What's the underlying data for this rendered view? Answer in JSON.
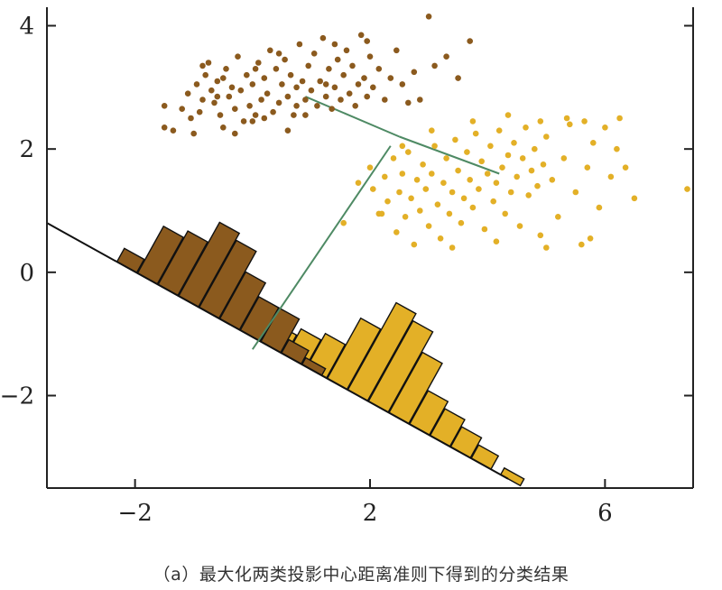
{
  "caption": "（a）最大化两类投影中心距离准则下得到的分类结果",
  "colors": {
    "class1": "#8B5A1E",
    "class2": "#E3B027",
    "line": "#111111",
    "connector": "#4E8A64",
    "axis": "#222222"
  },
  "chart_data": {
    "type": "scatter",
    "title": "",
    "xlabel": "",
    "ylabel": "",
    "xlim": [
      -3.5,
      7.5
    ],
    "ylim": [
      -3.5,
      4.3
    ],
    "xticks": [
      -2,
      2,
      6
    ],
    "xtick_labels": [
      "−2",
      "2",
      "6"
    ],
    "yticks": [
      4,
      2,
      0,
      -2
    ],
    "ytick_labels": [
      "4",
      "2",
      "0",
      "−2"
    ],
    "grid": false,
    "projection_line": {
      "x1": -3.5,
      "y1": 0.8,
      "x2": 4.35,
      "y2": -3.35
    },
    "connector_lines": [
      {
        "x1": 0.9,
        "y1": 2.85,
        "x2": 2.5,
        "y2": 2.2
      },
      {
        "x1": 2.5,
        "y1": 2.2,
        "x2": 4.2,
        "y2": 1.6
      },
      {
        "x1": 2.35,
        "y1": 2.05,
        "x2": 0.0,
        "y2": -1.25
      }
    ],
    "series": [
      {
        "color_key": "class1",
        "points": [
          [
            -1.5,
            2.7
          ],
          [
            -1.5,
            2.35
          ],
          [
            -1.35,
            2.3
          ],
          [
            -1.2,
            2.65
          ],
          [
            -1.1,
            2.9
          ],
          [
            -1.05,
            2.5
          ],
          [
            -1.0,
            2.25
          ],
          [
            -0.95,
            3.05
          ],
          [
            -0.9,
            2.6
          ],
          [
            -0.85,
            2.8
          ],
          [
            -0.8,
            3.2
          ],
          [
            -0.75,
            3.4
          ],
          [
            -0.7,
            2.95
          ],
          [
            -0.65,
            2.75
          ],
          [
            -0.6,
            3.1
          ],
          [
            -0.55,
            2.55
          ],
          [
            -0.5,
            2.35
          ],
          [
            -0.45,
            3.3
          ],
          [
            -0.4,
            2.85
          ],
          [
            -0.35,
            3.0
          ],
          [
            -0.3,
            2.65
          ],
          [
            -0.25,
            3.5
          ],
          [
            -0.2,
            2.95
          ],
          [
            -0.15,
            2.45
          ],
          [
            -0.1,
            3.2
          ],
          [
            -0.05,
            2.7
          ],
          [
            0.0,
            3.05
          ],
          [
            0.05,
            2.55
          ],
          [
            0.1,
            3.4
          ],
          [
            0.15,
            2.8
          ],
          [
            0.2,
            3.15
          ],
          [
            0.25,
            2.9
          ],
          [
            0.3,
            3.6
          ],
          [
            0.35,
            2.6
          ],
          [
            0.4,
            3.3
          ],
          [
            0.45,
            2.75
          ],
          [
            0.5,
            3.05
          ],
          [
            0.55,
            3.45
          ],
          [
            0.6,
            2.85
          ],
          [
            0.65,
            3.2
          ],
          [
            0.7,
            2.55
          ],
          [
            0.75,
            3.0
          ],
          [
            0.8,
            3.7
          ],
          [
            0.85,
            3.1
          ],
          [
            0.9,
            2.8
          ],
          [
            0.95,
            3.35
          ],
          [
            1.0,
            2.95
          ],
          [
            1.05,
            3.55
          ],
          [
            1.1,
            2.7
          ],
          [
            1.15,
            3.1
          ],
          [
            1.2,
            3.8
          ],
          [
            1.25,
            2.85
          ],
          [
            1.3,
            3.3
          ],
          [
            1.35,
            2.65
          ],
          [
            1.4,
            3.0
          ],
          [
            1.45,
            3.45
          ],
          [
            1.5,
            2.8
          ],
          [
            1.55,
            3.2
          ],
          [
            1.6,
            3.6
          ],
          [
            1.65,
            2.9
          ],
          [
            1.7,
            3.35
          ],
          [
            1.75,
            2.7
          ],
          [
            1.8,
            3.05
          ],
          [
            1.85,
            3.85
          ],
          [
            1.9,
            3.15
          ],
          [
            1.95,
            2.85
          ],
          [
            2.0,
            3.5
          ],
          [
            2.05,
            3.0
          ],
          [
            2.15,
            3.3
          ],
          [
            2.25,
            2.8
          ],
          [
            2.35,
            3.15
          ],
          [
            2.45,
            3.6
          ],
          [
            2.55,
            3.05
          ],
          [
            2.65,
            2.75
          ],
          [
            2.75,
            3.25
          ],
          [
            2.85,
            2.8
          ],
          [
            3.0,
            4.15
          ],
          [
            3.1,
            3.35
          ],
          [
            3.3,
            3.5
          ],
          [
            3.5,
            3.15
          ],
          [
            3.7,
            3.75
          ],
          [
            0.0,
            2.45
          ],
          [
            -0.3,
            2.25
          ],
          [
            0.2,
            2.5
          ],
          [
            0.6,
            2.3
          ],
          [
            1.4,
            3.7
          ],
          [
            1.95,
            3.75
          ],
          [
            0.45,
            3.55
          ],
          [
            -0.85,
            3.35
          ],
          [
            -0.5,
            3.15
          ],
          [
            0.9,
            2.55
          ],
          [
            1.25,
            3.05
          ],
          [
            0.05,
            3.3
          ],
          [
            -0.6,
            2.85
          ],
          [
            0.75,
            2.7
          ]
        ]
      },
      {
        "color_key": "class2",
        "points": [
          [
            1.55,
            0.8
          ],
          [
            1.8,
            1.45
          ],
          [
            2.0,
            1.7
          ],
          [
            2.05,
            1.35
          ],
          [
            2.15,
            0.95
          ],
          [
            2.25,
            1.55
          ],
          [
            2.3,
            1.15
          ],
          [
            2.4,
            1.85
          ],
          [
            2.45,
            0.65
          ],
          [
            2.5,
            1.3
          ],
          [
            2.55,
            1.6
          ],
          [
            2.6,
            0.9
          ],
          [
            2.65,
            1.95
          ],
          [
            2.7,
            1.2
          ],
          [
            2.75,
            0.45
          ],
          [
            2.8,
            1.5
          ],
          [
            2.85,
            1.0
          ],
          [
            2.9,
            1.75
          ],
          [
            2.95,
            1.35
          ],
          [
            3.0,
            0.75
          ],
          [
            3.05,
            1.6
          ],
          [
            3.1,
            2.05
          ],
          [
            3.15,
            1.1
          ],
          [
            3.2,
            0.55
          ],
          [
            3.25,
            1.45
          ],
          [
            3.3,
            1.85
          ],
          [
            3.35,
            0.95
          ],
          [
            3.4,
            1.3
          ],
          [
            3.45,
            2.15
          ],
          [
            3.5,
            1.65
          ],
          [
            3.55,
            0.8
          ],
          [
            3.6,
            1.2
          ],
          [
            3.65,
            1.95
          ],
          [
            3.7,
            1.5
          ],
          [
            3.75,
            1.05
          ],
          [
            3.8,
            2.25
          ],
          [
            3.85,
            1.35
          ],
          [
            3.9,
            1.8
          ],
          [
            3.95,
            0.7
          ],
          [
            4.0,
            1.6
          ],
          [
            4.05,
            2.05
          ],
          [
            4.1,
            1.15
          ],
          [
            4.15,
            1.45
          ],
          [
            4.2,
            2.3
          ],
          [
            4.25,
            1.7
          ],
          [
            4.3,
            0.95
          ],
          [
            4.35,
            1.9
          ],
          [
            4.4,
            1.3
          ],
          [
            4.45,
            2.1
          ],
          [
            4.5,
            1.55
          ],
          [
            4.55,
            0.75
          ],
          [
            4.6,
            1.85
          ],
          [
            4.65,
            2.35
          ],
          [
            4.7,
            1.25
          ],
          [
            4.75,
            1.65
          ],
          [
            4.8,
            2.0
          ],
          [
            4.85,
            1.4
          ],
          [
            4.9,
            0.6
          ],
          [
            4.95,
            1.75
          ],
          [
            5.0,
            2.2
          ],
          [
            5.1,
            1.5
          ],
          [
            5.2,
            0.9
          ],
          [
            5.3,
            1.85
          ],
          [
            5.4,
            2.4
          ],
          [
            5.5,
            1.3
          ],
          [
            5.6,
            0.45
          ],
          [
            5.7,
            1.7
          ],
          [
            5.8,
            2.1
          ],
          [
            5.9,
            1.05
          ],
          [
            6.0,
            2.35
          ],
          [
            6.1,
            1.55
          ],
          [
            6.25,
            2.5
          ],
          [
            5.35,
            2.5
          ],
          [
            5.65,
            2.45
          ],
          [
            6.2,
            2.0
          ],
          [
            6.5,
            1.2
          ],
          [
            7.4,
            1.35
          ],
          [
            2.55,
            2.05
          ],
          [
            3.05,
            2.3
          ],
          [
            3.75,
            2.45
          ],
          [
            4.35,
            2.55
          ],
          [
            4.9,
            2.45
          ],
          [
            2.2,
            0.95
          ],
          [
            3.4,
            0.4
          ],
          [
            4.15,
            0.5
          ],
          [
            5.0,
            0.4
          ],
          [
            5.75,
            0.55
          ],
          [
            6.35,
            1.7
          ]
        ]
      }
    ],
    "histogram": {
      "bin_centers": [
        -2.1,
        -1.75,
        -1.4,
        -1.05,
        -0.7,
        -0.35,
        0.0,
        0.35,
        0.7,
        1.05,
        1.4,
        1.75,
        2.1,
        2.45,
        2.8,
        3.15,
        3.5,
        3.85,
        4.35
      ],
      "class1_counts": [
        2,
        7,
        8,
        11,
        10,
        7,
        5,
        5,
        2,
        1,
        0,
        0,
        0,
        0,
        0,
        0,
        0,
        0,
        0
      ],
      "class2_counts": [
        0,
        0,
        0,
        0,
        0,
        0,
        2,
        3,
        4,
        5,
        9,
        13,
        12,
        9,
        5,
        4,
        3,
        2,
        1
      ]
    }
  }
}
